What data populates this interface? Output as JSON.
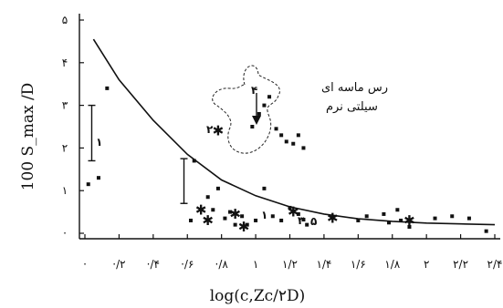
{
  "chart_data": {
    "type": "scatter",
    "xlabel": "log(c,Zс/۲D)",
    "ylabel": "100 S_max /D",
    "x_ticks": [
      "·",
      "·/۲",
      "·/۴",
      "·/۶",
      "·/۸",
      "۱",
      "۱/۲",
      "۱/۴",
      "۱/۶",
      "۱/۸",
      "۲",
      "۲/۲",
      "۲/۴"
    ],
    "y_ticks": [
      "·",
      "۱",
      "۲",
      "۳",
      "۴",
      "۵"
    ],
    "xlim": [
      0,
      2.4
    ],
    "ylim": [
      0,
      5
    ],
    "annotation": "رس ماسه ای سیلتی نرم",
    "markers": [
      "۱",
      "۲",
      "۳",
      "۴",
      "۵"
    ],
    "fit_curve": [
      [
        0.05,
        4.55
      ],
      [
        0.2,
        3.6
      ],
      [
        0.4,
        2.65
      ],
      [
        0.6,
        1.85
      ],
      [
        0.8,
        1.25
      ],
      [
        1.0,
        0.88
      ],
      [
        1.2,
        0.62
      ],
      [
        1.4,
        0.45
      ],
      [
        1.6,
        0.34
      ],
      [
        1.8,
        0.28
      ],
      [
        2.0,
        0.24
      ],
      [
        2.2,
        0.22
      ],
      [
        2.4,
        0.2
      ]
    ],
    "points": [
      [
        0.02,
        1.15
      ],
      [
        0.08,
        1.3
      ],
      [
        0.13,
        3.4
      ],
      [
        0.62,
        0.3
      ],
      [
        0.64,
        1.7
      ],
      [
        0.72,
        0.85
      ],
      [
        0.75,
        0.55
      ],
      [
        0.78,
        1.05
      ],
      [
        0.82,
        0.35
      ],
      [
        0.85,
        0.5
      ],
      [
        0.88,
        0.2
      ],
      [
        0.92,
        0.4
      ],
      [
        0.95,
        0.2
      ],
      [
        0.98,
        2.5
      ],
      [
        1.0,
        0.3
      ],
      [
        1.05,
        1.05
      ],
      [
        1.1,
        0.4
      ],
      [
        1.15,
        0.3
      ],
      [
        1.2,
        0.6
      ],
      [
        1.25,
        0.45
      ],
      [
        1.28,
        0.32
      ],
      [
        1.3,
        0.2
      ],
      [
        1.6,
        0.3
      ],
      [
        1.65,
        0.4
      ],
      [
        1.75,
        0.45
      ],
      [
        1.78,
        0.25
      ],
      [
        1.83,
        0.55
      ],
      [
        1.85,
        0.3
      ],
      [
        1.9,
        0.15
      ],
      [
        2.05,
        0.35
      ],
      [
        2.15,
        0.4
      ],
      [
        2.25,
        0.35
      ],
      [
        2.35,
        0.05
      ],
      [
        1.05,
        3.0
      ],
      [
        1.02,
        2.8
      ],
      [
        1.12,
        2.45
      ],
      [
        1.15,
        2.3
      ],
      [
        1.18,
        2.15
      ],
      [
        1.22,
        2.1
      ],
      [
        1.25,
        2.3
      ],
      [
        1.28,
        2.0
      ],
      [
        1.08,
        3.2
      ]
    ],
    "stars": [
      [
        0.78,
        2.4
      ],
      [
        0.68,
        0.55
      ],
      [
        0.72,
        0.3
      ],
      [
        0.88,
        0.45
      ],
      [
        1.22,
        0.5
      ],
      [
        1.45,
        0.35
      ],
      [
        1.9,
        0.3
      ],
      [
        0.93,
        0.15
      ]
    ],
    "error_bars": [
      {
        "x": 0.04,
        "y1": 3.0,
        "y2": 1.7
      },
      {
        "x": 0.58,
        "y1": 1.75,
        "y2": 0.7
      }
    ],
    "grid": false
  }
}
